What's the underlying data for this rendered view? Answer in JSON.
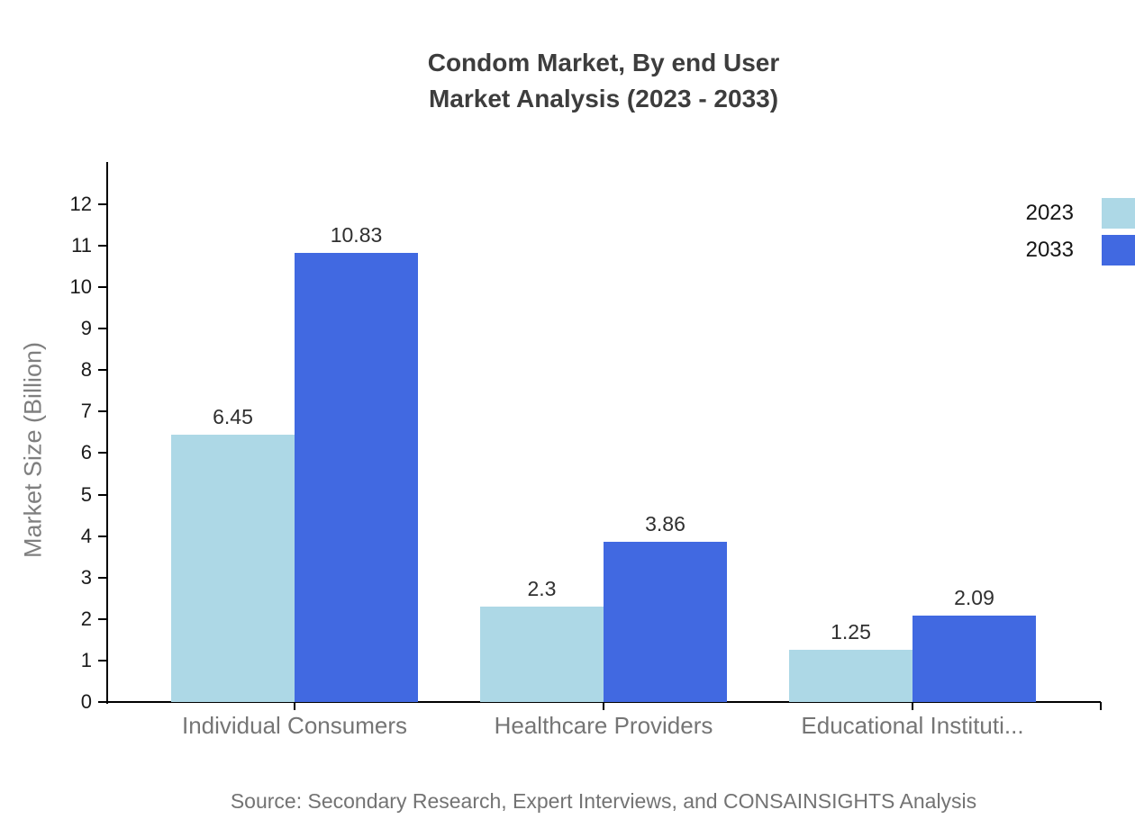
{
  "title": {
    "line1": "Condom Market, By end User",
    "line2": "Market Analysis (2023 - 2033)"
  },
  "chart_data": {
    "type": "bar",
    "title": "Condom Market, By end User Market Analysis (2023 - 2033)",
    "categories": [
      "Individual Consumers",
      "Healthcare Providers",
      "Educational Instituti..."
    ],
    "series": [
      {
        "name": "2023",
        "color": "#ADD8E6",
        "values": [
          6.45,
          2.3,
          1.25
        ]
      },
      {
        "name": "2033",
        "color": "#4169E1",
        "values": [
          10.83,
          3.86,
          2.09
        ]
      }
    ],
    "xlabel": "",
    "ylabel": "Market Size (Billion)",
    "ylim": [
      0,
      12
    ],
    "y_ticks": [
      0,
      1,
      2,
      3,
      4,
      5,
      6,
      7,
      8,
      9,
      10,
      11,
      12
    ],
    "grid": false,
    "legend_position": "top-right",
    "bar_value_labels": true
  },
  "source": {
    "text": "Source: Secondary Research, Expert Interviews, and CONSAINSIGHTS Analysis"
  },
  "colors": {
    "series_2023": "#ADD8E6",
    "series_2033": "#4169E1",
    "title_text": "#3d3d3d",
    "axis": "#000000",
    "tick_label": "#1a1a1a",
    "category_label": "#757575",
    "value_label": "#2f2f2f",
    "muted_text": "#737373"
  }
}
